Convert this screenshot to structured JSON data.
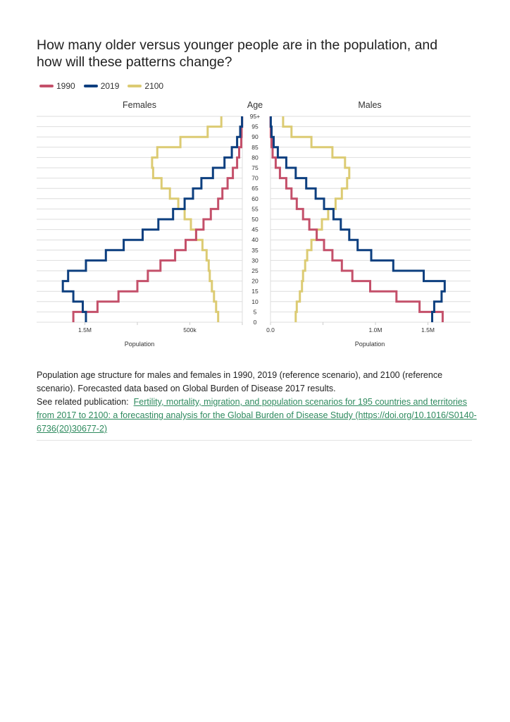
{
  "title": "How many older versus younger people are in the population, and how will these patterns change?",
  "caption": {
    "text": "Population age structure for males and females in 1990, 2019 (reference scenario), and 2100 (reference scenario). Forecasted data based on Global Burden of Disease 2017 results.",
    "see_related_label": "See related publication:",
    "link_text": "Fertility, mortality, migration, and population scenarios for 195 countries and territories from 2017 to 2100: a forecasting analysis for the Global Burden of Disease Study (https://doi.org/10.1016/S0140-6736(20)30677-2)"
  },
  "chart_data": {
    "type": "line",
    "subtype": "population pyramid (step lines)",
    "title": "How many older versus younger people are in the population, and how will these patterns change?",
    "legend": {
      "placement": "top-left",
      "entries": [
        "1990",
        "2019",
        "2100"
      ]
    },
    "colors": {
      "1990": "#c4506a",
      "2019": "#0d3f7f",
      "2100": "#dccb73"
    },
    "age_axis_label": "Age",
    "age_ticks": [
      "0",
      "5",
      "10",
      "15",
      "20",
      "25",
      "30",
      "35",
      "40",
      "45",
      "50",
      "55",
      "60",
      "65",
      "70",
      "75",
      "80",
      "85",
      "90",
      "95",
      "95+"
    ],
    "age_groups": [
      "0",
      "5",
      "10",
      "15",
      "20",
      "25",
      "30",
      "35",
      "40",
      "45",
      "50",
      "55",
      "60",
      "65",
      "70",
      "75",
      "80",
      "85",
      "90",
      "95+"
    ],
    "grid": true,
    "unit": "millions",
    "panels": [
      {
        "name": "Females",
        "xlabel": "Population",
        "xlim": [
          0,
          1.96
        ],
        "direction": "reversed",
        "ticks": [
          {
            "value": 1.5,
            "label": "1.5M"
          },
          {
            "value": 1.0,
            "label": ""
          },
          {
            "value": 0.5,
            "label": "500k"
          },
          {
            "value": 0,
            "label": ""
          }
        ],
        "series": [
          {
            "name": "1990",
            "values": [
              1.61,
              1.38,
              1.18,
              1.0,
              0.9,
              0.78,
              0.64,
              0.54,
              0.44,
              0.37,
              0.3,
              0.23,
              0.19,
              0.14,
              0.09,
              0.05,
              0.03,
              0.01,
              0.007,
              0.002
            ]
          },
          {
            "name": "2019",
            "values": [
              1.49,
              1.52,
              1.61,
              1.71,
              1.66,
              1.49,
              1.3,
              1.13,
              0.95,
              0.8,
              0.66,
              0.55,
              0.47,
              0.39,
              0.28,
              0.17,
              0.1,
              0.05,
              0.02,
              0.003
            ]
          },
          {
            "name": "2100",
            "values": [
              0.23,
              0.25,
              0.27,
              0.29,
              0.31,
              0.32,
              0.34,
              0.38,
              0.44,
              0.49,
              0.55,
              0.61,
              0.69,
              0.77,
              0.85,
              0.86,
              0.81,
              0.59,
              0.33,
              0.2
            ]
          }
        ]
      },
      {
        "name": "Males",
        "xlabel": "Population",
        "xlim": [
          0,
          1.91
        ],
        "direction": "normal",
        "ticks": [
          {
            "value": 0,
            "label": "0.0"
          },
          {
            "value": 0.5,
            "label": ""
          },
          {
            "value": 1.0,
            "label": "1.0M"
          },
          {
            "value": 1.5,
            "label": "1.5M"
          }
        ],
        "series": [
          {
            "name": "1990",
            "values": [
              1.64,
              1.42,
              1.2,
              0.95,
              0.78,
              0.68,
              0.59,
              0.51,
              0.44,
              0.37,
              0.31,
              0.25,
              0.2,
              0.15,
              0.09,
              0.05,
              0.02,
              0.01,
              0.003,
              0.001
            ]
          },
          {
            "name": "2019",
            "values": [
              1.54,
              1.56,
              1.63,
              1.66,
              1.46,
              1.17,
              0.96,
              0.83,
              0.75,
              0.67,
              0.6,
              0.51,
              0.43,
              0.34,
              0.24,
              0.15,
              0.07,
              0.03,
              0.01,
              0.003
            ]
          },
          {
            "name": "2100",
            "values": [
              0.24,
              0.25,
              0.28,
              0.3,
              0.31,
              0.33,
              0.35,
              0.39,
              0.44,
              0.49,
              0.55,
              0.62,
              0.68,
              0.73,
              0.75,
              0.71,
              0.59,
              0.39,
              0.2,
              0.12
            ]
          }
        ]
      }
    ]
  }
}
